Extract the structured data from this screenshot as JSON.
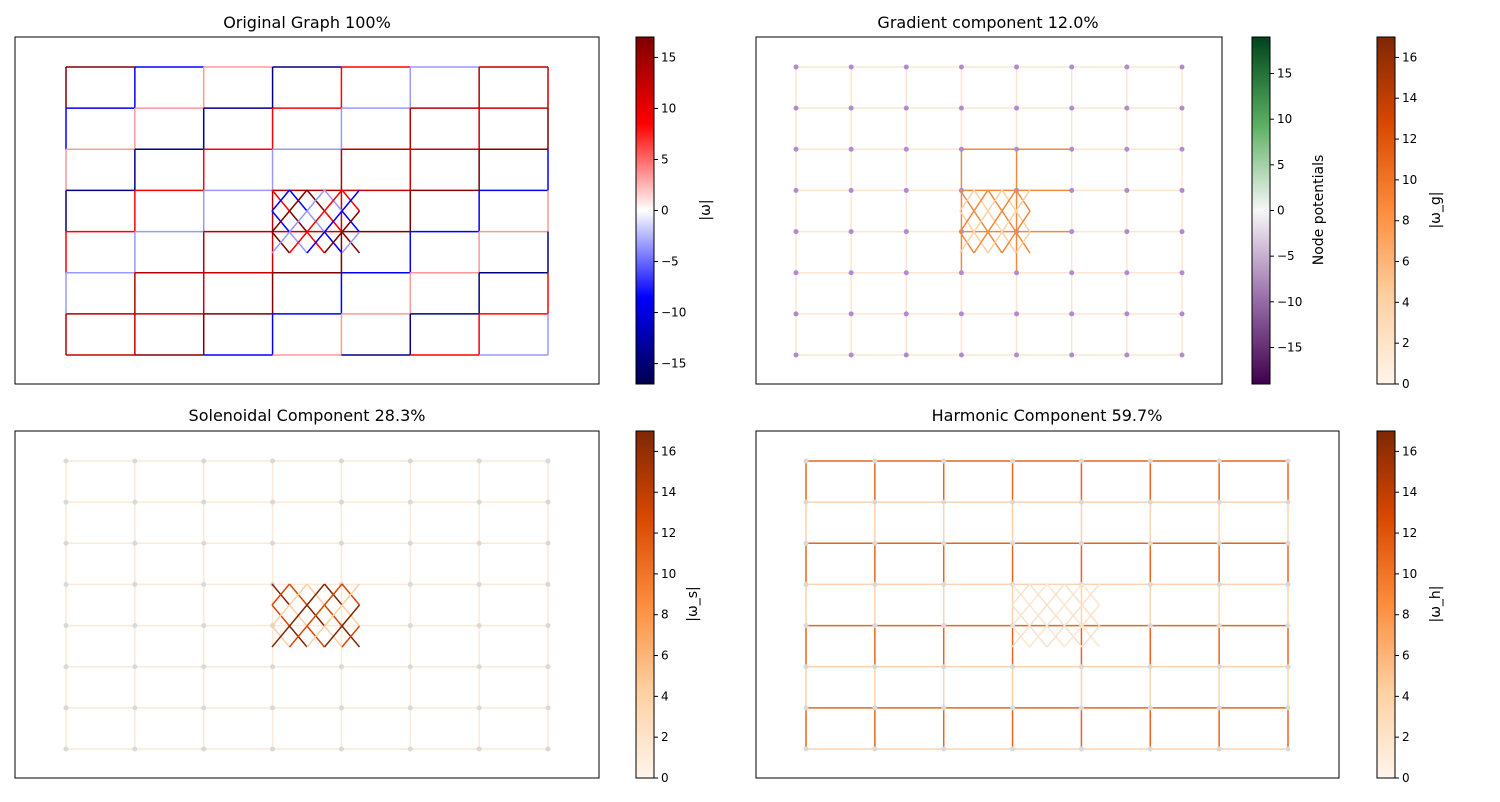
{
  "chart_data": [
    {
      "type": "network",
      "title": "Original Graph 100%",
      "colorbar": {
        "label": "|ω|",
        "colormap": "seismic",
        "range": [
          -17,
          17
        ],
        "ticks": [
          -15,
          -10,
          -5,
          0,
          5,
          10,
          15
        ],
        "tick_labels": [
          "−15",
          "−10",
          "−5",
          "0",
          "5",
          "10",
          "15"
        ]
      },
      "grid": {
        "columns": 8,
        "rows": 8,
        "dense_patch": "3x5 nodes between columns 4–5, rows 4–5"
      },
      "edge_style": "directed arrows, colored by signed flow",
      "node_color": "none"
    },
    {
      "type": "network",
      "title": "Gradient component 12.0%",
      "colorbars": [
        {
          "label": "Node potentials",
          "colormap": "PRGn",
          "range": [
            -19,
            19
          ],
          "ticks": [
            -15,
            -10,
            -5,
            0,
            5,
            10,
            15
          ],
          "tick_labels": [
            "−15",
            "−10",
            "−5",
            "0",
            "5",
            "10",
            "15"
          ]
        },
        {
          "label": "|ω_g|",
          "colormap": "Oranges",
          "range": [
            0,
            17
          ],
          "ticks": [
            0,
            2,
            4,
            6,
            8,
            10,
            12,
            14,
            16
          ],
          "tick_labels": [
            "0",
            "2",
            "4",
            "6",
            "8",
            "10",
            "12",
            "14",
            "16"
          ]
        }
      ],
      "grid": {
        "columns": 8,
        "rows": 8,
        "dense_patch": "dark green node patch at center"
      },
      "edge_style": "faint orange edges, stronger around center patch"
    },
    {
      "type": "network",
      "title": "Solenoidal Component 28.3%",
      "colorbar": {
        "label": "|ω_s|",
        "colormap": "Oranges",
        "range": [
          0,
          17
        ],
        "ticks": [
          0,
          2,
          4,
          6,
          8,
          10,
          12,
          14,
          16
        ],
        "tick_labels": [
          "0",
          "2",
          "4",
          "6",
          "8",
          "10",
          "12",
          "14",
          "16"
        ]
      },
      "grid": {
        "columns": 8,
        "rows": 8,
        "dense_patch": "strong flow only inside center patch"
      },
      "edge_style": "near-zero flow outside patch"
    },
    {
      "type": "network",
      "title": "Harmonic Component 59.7%",
      "colorbar": {
        "label": "|ω_h|",
        "colormap": "Oranges",
        "range": [
          0,
          17
        ],
        "ticks": [
          0,
          2,
          4,
          6,
          8,
          10,
          12,
          14,
          16
        ],
        "tick_labels": [
          "0",
          "2",
          "4",
          "6",
          "8",
          "10",
          "12",
          "14",
          "16"
        ]
      },
      "grid": {
        "columns": 8,
        "rows": 8,
        "dense_patch": "faint center patch"
      },
      "edge_style": "strong orange flow lines across the grid"
    }
  ]
}
